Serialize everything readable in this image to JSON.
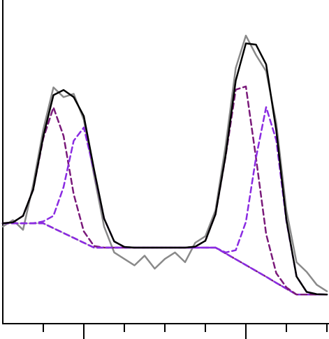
{
  "chart_data": {
    "type": "line",
    "x": [
      0,
      0.25,
      0.5,
      0.75,
      1,
      1.25,
      1.5,
      1.75,
      2,
      2.25,
      2.5,
      2.75,
      3,
      3.25,
      3.5,
      3.75,
      4,
      4.25,
      4.5,
      4.75,
      5,
      5.25,
      5.5,
      5.75,
      6,
      6.25,
      6.5,
      6.75,
      7,
      7.25,
      7.5,
      7.75,
      8
    ],
    "xlim": [
      0,
      8
    ],
    "ylim": [
      0,
      1
    ],
    "xticks": [
      1,
      2,
      3,
      4,
      5,
      6,
      7,
      8
    ],
    "major_xticks": [
      2,
      6
    ],
    "series": [
      {
        "color": "#cfcfcf",
        "width": 2,
        "dash": "solid",
        "values": [
          0.31,
          0.31,
          0.31,
          0.31,
          0.31,
          0.295,
          0.28,
          0.265,
          0.25,
          0.235,
          0.235,
          0.235,
          0.235,
          0.235,
          0.235,
          0.235,
          0.235,
          0.235,
          0.235,
          0.235,
          0.235,
          0.235,
          0.217,
          0.199,
          0.181,
          0.163,
          0.145,
          0.126,
          0.108,
          0.09,
          0.09,
          0.09,
          0.09
        ]
      },
      {
        "color": "#8a8a8a",
        "width": 2.5,
        "dash": "solid",
        "values": [
          0.3,
          0.32,
          0.29,
          0.43,
          0.6,
          0.73,
          0.7,
          0.71,
          0.63,
          0.46,
          0.3,
          0.22,
          0.2,
          0.18,
          0.21,
          0.17,
          0.2,
          0.22,
          0.19,
          0.25,
          0.27,
          0.35,
          0.55,
          0.79,
          0.89,
          0.83,
          0.78,
          0.62,
          0.35,
          0.19,
          0.16,
          0.12,
          0.1
        ]
      },
      {
        "color": "#7a1a7a",
        "width": 2.5,
        "dash": "dashed",
        "values": [
          0.31,
          0.313,
          0.333,
          0.414,
          0.573,
          0.668,
          0.58,
          0.4,
          0.285,
          0.24,
          0.235,
          0.235,
          0.235,
          0.235,
          0.235,
          0.235,
          0.235,
          0.235,
          0.235,
          0.235,
          0.235,
          0.235,
          0.217,
          0.199,
          0.181,
          0.163,
          0.145,
          0.126,
          0.108,
          0.09,
          0.09,
          0.09,
          0.09
        ]
      },
      {
        "color": "#8a2be2",
        "width": 2.5,
        "dash": "dashed",
        "values": [
          0.31,
          0.31,
          0.31,
          0.31,
          0.316,
          0.333,
          0.422,
          0.565,
          0.606,
          0.473,
          0.325,
          0.254,
          0.237,
          0.235,
          0.235,
          0.235,
          0.235,
          0.235,
          0.235,
          0.235,
          0.235,
          0.235,
          0.217,
          0.199,
          0.181,
          0.163,
          0.145,
          0.126,
          0.108,
          0.09,
          0.09,
          0.09,
          0.09
        ]
      },
      {
        "color": "#7a1a7a",
        "width": 2.5,
        "dash": "dashed",
        "values": [
          0.31,
          0.31,
          0.31,
          0.31,
          0.31,
          0.295,
          0.28,
          0.265,
          0.25,
          0.235,
          0.235,
          0.235,
          0.235,
          0.235,
          0.235,
          0.235,
          0.235,
          0.235,
          0.235,
          0.238,
          0.256,
          0.338,
          0.517,
          0.723,
          0.733,
          0.512,
          0.277,
          0.156,
          0.112,
          0.09,
          0.09,
          0.09,
          0.09
        ]
      },
      {
        "color": "#8a2be2",
        "width": 2.5,
        "dash": "dashed",
        "values": [
          0.31,
          0.31,
          0.31,
          0.31,
          0.31,
          0.295,
          0.28,
          0.265,
          0.25,
          0.235,
          0.235,
          0.235,
          0.235,
          0.235,
          0.235,
          0.235,
          0.235,
          0.235,
          0.235,
          0.235,
          0.235,
          0.235,
          0.22,
          0.227,
          0.314,
          0.513,
          0.669,
          0.567,
          0.317,
          0.146,
          0.098,
          0.091,
          0.09
        ]
      },
      {
        "color": "#000000",
        "width": 2.5,
        "dash": "solid",
        "values": [
          0.31,
          0.313,
          0.333,
          0.414,
          0.579,
          0.706,
          0.722,
          0.7,
          0.641,
          0.478,
          0.325,
          0.254,
          0.237,
          0.235,
          0.235,
          0.235,
          0.235,
          0.235,
          0.235,
          0.238,
          0.256,
          0.338,
          0.52,
          0.751,
          0.866,
          0.862,
          0.801,
          0.597,
          0.321,
          0.146,
          0.098,
          0.091,
          0.09
        ]
      }
    ]
  }
}
